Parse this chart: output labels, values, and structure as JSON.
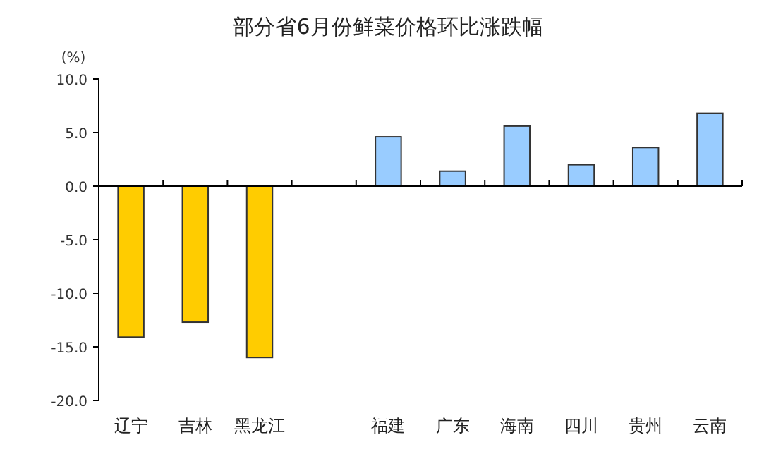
{
  "chart_data": {
    "type": "bar",
    "title": "部分省6月份鲜菜价格环比涨跌幅",
    "ylabel": "(%)",
    "categories": [
      "辽宁",
      "吉林",
      "黑龙江",
      null,
      "福建",
      "广东",
      "海南",
      "四川",
      "贵州",
      "云南"
    ],
    "values": [
      -14.1,
      -12.7,
      -16.0,
      null,
      4.6,
      1.4,
      5.6,
      2.0,
      3.6,
      6.8
    ],
    "colors": [
      "#ffcc00",
      "#ffcc00",
      "#ffcc00",
      null,
      "#99ccff",
      "#99ccff",
      "#99ccff",
      "#99ccff",
      "#99ccff",
      "#99ccff"
    ],
    "ylim": [
      -20,
      10
    ],
    "yticks": [
      {
        "value": -20,
        "label": "-20.0"
      },
      {
        "value": -15,
        "label": "-15.0"
      },
      {
        "value": -10,
        "label": "-10.0"
      },
      {
        "value": -5,
        "label": "-5.0"
      },
      {
        "value": 0,
        "label": "0.0"
      },
      {
        "value": 5,
        "label": "5.0"
      },
      {
        "value": 10,
        "label": "10.0"
      }
    ]
  }
}
